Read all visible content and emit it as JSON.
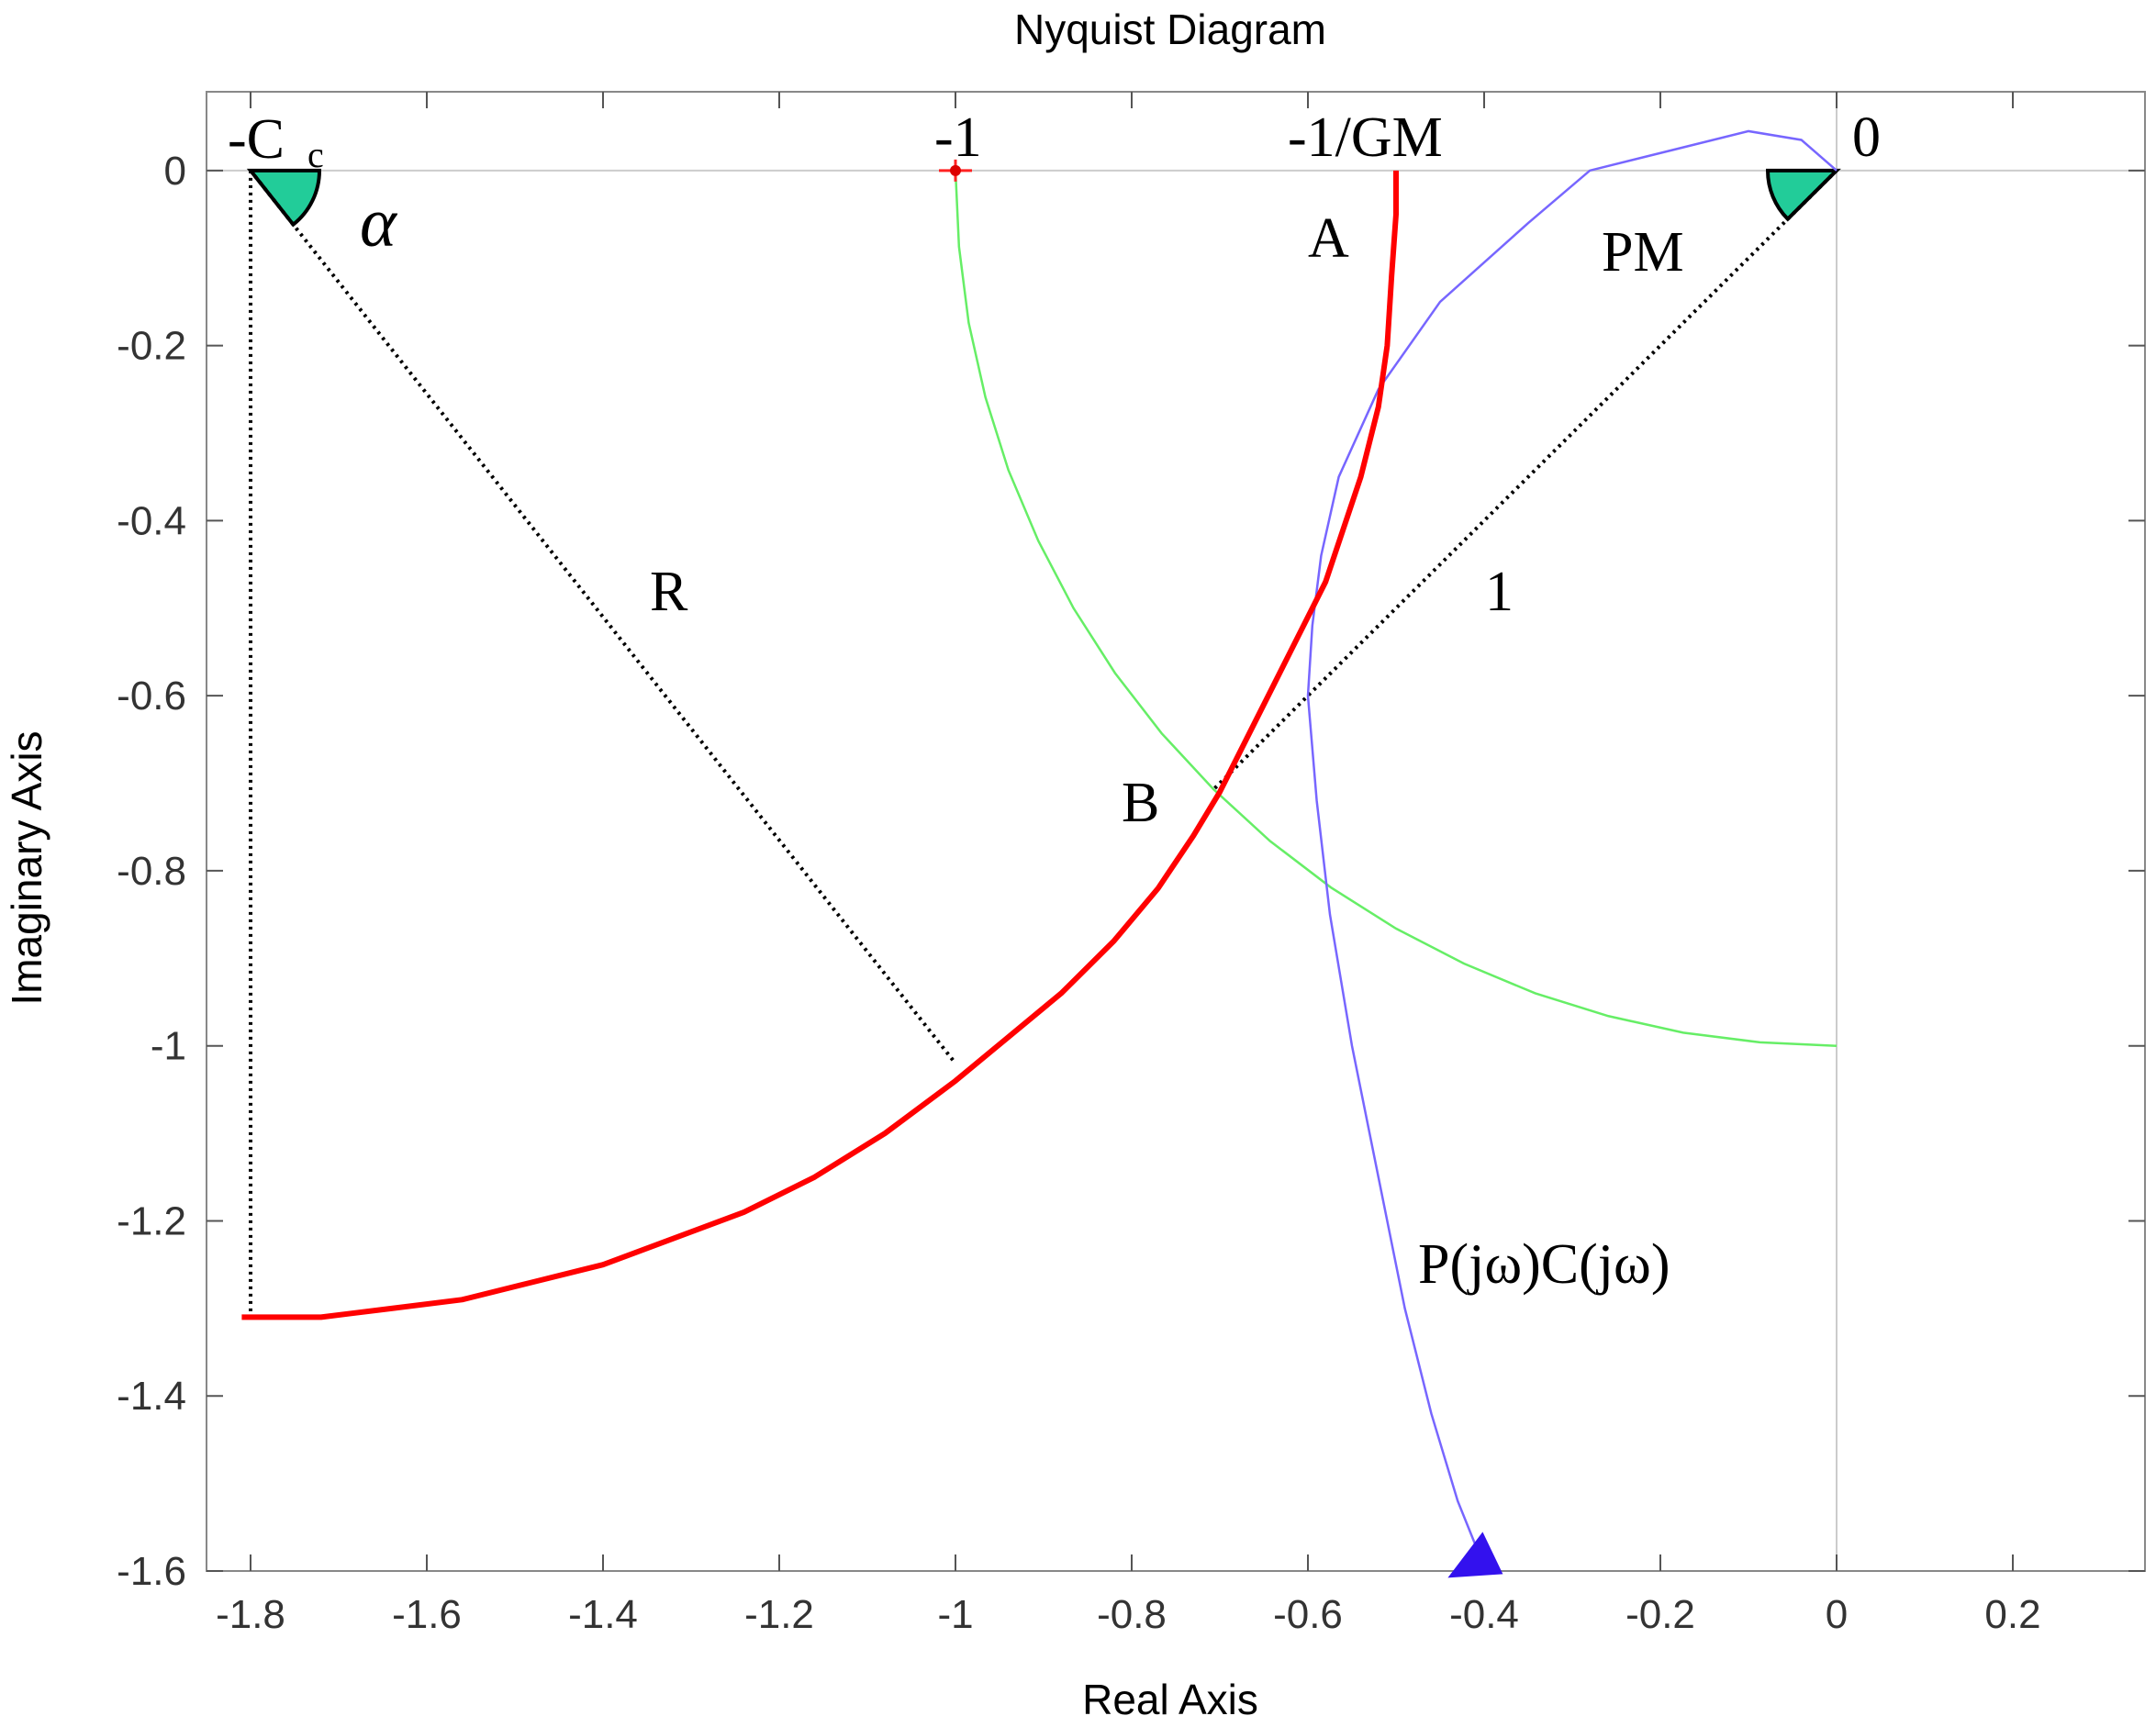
{
  "chart_data": {
    "type": "line",
    "title": "Nyquist Diagram",
    "xlabel": "Real Axis",
    "ylabel": "Imaginary Axis",
    "xlim": [
      -1.85,
      0.35
    ],
    "ylim": [
      -1.6,
      0.09
    ],
    "xticks": [
      -1.8,
      -1.6,
      -1.4,
      -1.2,
      -1,
      -0.8,
      -0.6,
      -0.4,
      -0.2,
      0,
      0.2
    ],
    "xtick_labels": [
      "-1.8",
      "-1.6",
      "-1.4",
      "-1.2",
      "-1",
      "-0.8",
      "-0.6",
      "-0.4",
      "-0.2",
      "0",
      "0.2"
    ],
    "yticks": [
      0,
      -0.2,
      -0.4,
      -0.6,
      -0.8,
      -1,
      -1.2,
      -1.4,
      -1.6
    ],
    "ytick_labels": [
      "0",
      "-0.2",
      "-0.4",
      "-0.6",
      "-0.8",
      "-1",
      "-1.2",
      "-1.4",
      "-1.6"
    ],
    "grid": false,
    "series": [
      {
        "name": "unit-circle",
        "color": "#66ee66",
        "x": [
          -1.0,
          -0.996,
          -0.985,
          -0.966,
          -0.94,
          -0.906,
          -0.866,
          -0.819,
          -0.766,
          -0.707,
          -0.643,
          -0.574,
          -0.5,
          -0.423,
          -0.342,
          -0.259,
          -0.174,
          -0.087,
          0.0
        ],
        "y": [
          0.0,
          -0.087,
          -0.174,
          -0.259,
          -0.342,
          -0.423,
          -0.5,
          -0.574,
          -0.643,
          -0.707,
          -0.766,
          -0.819,
          -0.866,
          -0.906,
          -0.94,
          -0.966,
          -0.985,
          -0.996,
          -1.0
        ]
      },
      {
        "name": "critical-locus",
        "color": "#ff0000",
        "x": [
          -0.5,
          -0.5,
          -0.505,
          -0.51,
          -0.52,
          -0.54,
          -0.56,
          -0.58,
          -0.62,
          -0.66,
          -0.7,
          -0.73,
          -0.77,
          -0.82,
          -0.88,
          -0.94,
          -1.0,
          -1.08,
          -1.16,
          -1.24,
          -1.32,
          -1.4,
          -1.48,
          -1.56,
          -1.64,
          -1.72,
          -1.81
        ],
        "y": [
          0.0,
          -0.05,
          -0.12,
          -0.2,
          -0.27,
          -0.35,
          -0.41,
          -0.47,
          -0.55,
          -0.63,
          -0.71,
          -0.76,
          -0.82,
          -0.88,
          -0.94,
          -0.99,
          -1.04,
          -1.1,
          -1.15,
          -1.19,
          -1.22,
          -1.25,
          -1.27,
          -1.29,
          -1.3,
          -1.31,
          -1.31
        ]
      },
      {
        "name": "P(jω)C(jω)",
        "color": "#7766ff",
        "x": [
          0.0,
          -0.04,
          -0.1,
          -0.18,
          -0.28,
          -0.35,
          -0.45,
          -0.52,
          -0.565,
          -0.585,
          -0.595,
          -0.6,
          -0.59,
          -0.575,
          -0.55,
          -0.52,
          -0.49,
          -0.46,
          -0.43,
          -0.41
        ],
        "y": [
          0.0,
          0.035,
          0.045,
          0.025,
          0.0,
          -0.06,
          -0.15,
          -0.25,
          -0.35,
          -0.44,
          -0.52,
          -0.6,
          -0.72,
          -0.85,
          -1.0,
          -1.15,
          -1.3,
          -1.42,
          -1.52,
          -1.57
        ]
      }
    ],
    "annotations": [
      "-C",
      "c",
      "α",
      "-1",
      "-1/GM",
      "0",
      "A",
      "PM",
      "R",
      "1",
      "B",
      "P(jω)C(jω)"
    ]
  }
}
